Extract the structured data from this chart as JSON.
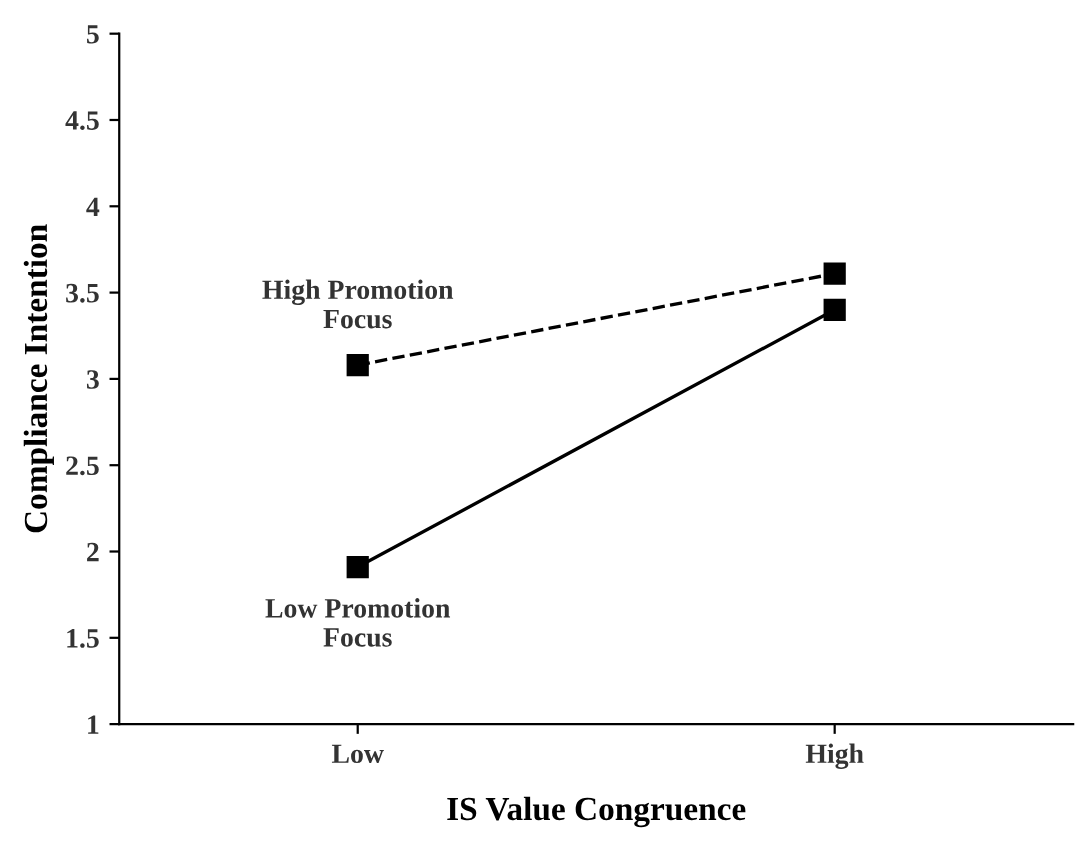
{
  "chart_data": {
    "type": "line",
    "xlabel": "IS Value Congruence",
    "ylabel": "Compliance Intention",
    "categories": [
      "Low",
      "High"
    ],
    "series": [
      {
        "name": "High Promotion\nFocus",
        "color": "#000000",
        "values": [
          3.08,
          3.61
        ],
        "line_style": "dashed"
      },
      {
        "name": "Low Promotion\nFocus",
        "color": "#000000",
        "values": [
          1.91,
          3.4
        ],
        "line_style": "solid"
      }
    ],
    "ylim": [
      1,
      5
    ],
    "yticks": [
      1,
      1.5,
      2,
      2.5,
      3,
      3.5,
      4,
      4.5,
      5
    ],
    "grid": false,
    "legend": false,
    "marker": "square"
  }
}
